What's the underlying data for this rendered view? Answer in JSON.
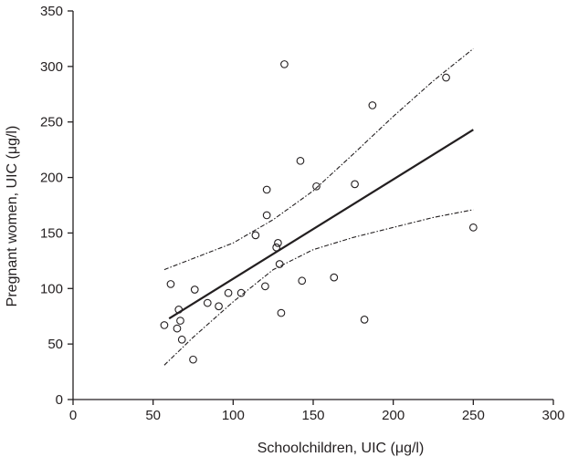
{
  "chart_data": {
    "type": "scatter",
    "xlabel": "Schoolchildren, UIC (μg/l)",
    "ylabel": "Pregnant women, UIC (μg/l)",
    "xlim": [
      0,
      300
    ],
    "ylim": [
      0,
      350
    ],
    "xticks": [
      0,
      50,
      100,
      150,
      200,
      250,
      300
    ],
    "yticks": [
      0,
      50,
      100,
      150,
      200,
      250,
      300,
      350
    ],
    "grid": false,
    "points": [
      {
        "x": 57,
        "y": 67
      },
      {
        "x": 61,
        "y": 104
      },
      {
        "x": 65,
        "y": 64
      },
      {
        "x": 66,
        "y": 81
      },
      {
        "x": 67,
        "y": 71
      },
      {
        "x": 68,
        "y": 54
      },
      {
        "x": 75,
        "y": 36
      },
      {
        "x": 76,
        "y": 99
      },
      {
        "x": 84,
        "y": 87
      },
      {
        "x": 91,
        "y": 84
      },
      {
        "x": 97,
        "y": 96
      },
      {
        "x": 105,
        "y": 96
      },
      {
        "x": 114,
        "y": 148
      },
      {
        "x": 120,
        "y": 102
      },
      {
        "x": 121,
        "y": 189
      },
      {
        "x": 121,
        "y": 166
      },
      {
        "x": 127,
        "y": 137
      },
      {
        "x": 128,
        "y": 141
      },
      {
        "x": 129,
        "y": 122
      },
      {
        "x": 130,
        "y": 78
      },
      {
        "x": 132,
        "y": 302
      },
      {
        "x": 142,
        "y": 215
      },
      {
        "x": 143,
        "y": 107
      },
      {
        "x": 152,
        "y": 192
      },
      {
        "x": 163,
        "y": 110
      },
      {
        "x": 176,
        "y": 194
      },
      {
        "x": 182,
        "y": 72
      },
      {
        "x": 187,
        "y": 265
      },
      {
        "x": 233,
        "y": 290
      },
      {
        "x": 250,
        "y": 155
      }
    ],
    "regression_line": [
      {
        "x": 60,
        "y": 73
      },
      {
        "x": 250,
        "y": 243
      }
    ],
    "ci_upper": [
      {
        "x": 57,
        "y": 117
      },
      {
        "x": 75,
        "y": 127
      },
      {
        "x": 100,
        "y": 141
      },
      {
        "x": 125,
        "y": 162
      },
      {
        "x": 150,
        "y": 188
      },
      {
        "x": 175,
        "y": 221
      },
      {
        "x": 200,
        "y": 255
      },
      {
        "x": 225,
        "y": 287
      },
      {
        "x": 250,
        "y": 316
      }
    ],
    "ci_lower": [
      {
        "x": 57,
        "y": 31
      },
      {
        "x": 75,
        "y": 56
      },
      {
        "x": 100,
        "y": 88
      },
      {
        "x": 125,
        "y": 117
      },
      {
        "x": 150,
        "y": 135
      },
      {
        "x": 175,
        "y": 146
      },
      {
        "x": 200,
        "y": 155
      },
      {
        "x": 225,
        "y": 164
      },
      {
        "x": 250,
        "y": 171
      }
    ]
  }
}
